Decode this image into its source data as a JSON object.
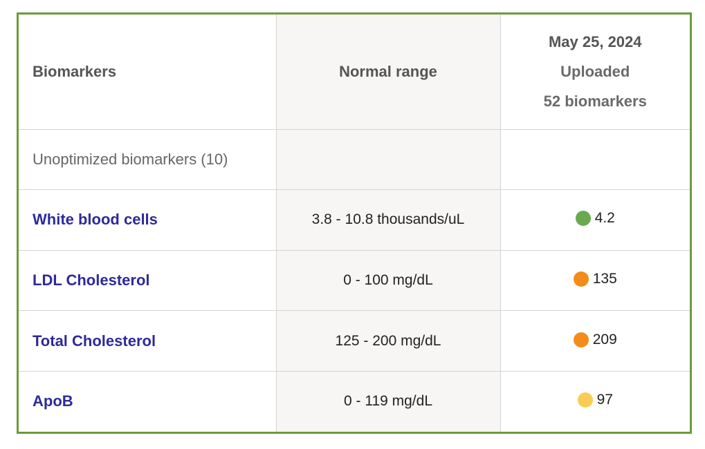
{
  "table": {
    "headers": {
      "biomarkers": "Biomarkers",
      "normal_range": "Normal range",
      "date": "May 25, 2024",
      "status": "Uploaded",
      "count": "52 biomarkers"
    },
    "section_label": "Unoptimized biomarkers (10)",
    "rows": [
      {
        "name": "White blood cells",
        "range": "3.8 - 10.8 thousands/uL",
        "value": "4.2",
        "status": "normal",
        "dot_color": "#6aaa4f"
      },
      {
        "name": "LDL Cholesterol",
        "range": "0 - 100 mg/dL",
        "value": "135",
        "status": "out-of-range",
        "dot_color": "#f28c1a"
      },
      {
        "name": "Total Cholesterol",
        "range": "125 - 200 mg/dL",
        "value": "209",
        "status": "out-of-range",
        "dot_color": "#f28c1a"
      },
      {
        "name": "ApoB",
        "range": "0 - 119 mg/dL",
        "value": "97",
        "status": "borderline",
        "dot_color": "#f9cd55"
      }
    ]
  },
  "colors": {
    "frame_border": "#6b9a3a",
    "link": "#2d2a9c",
    "range_column_bg": "#f7f6f4"
  }
}
